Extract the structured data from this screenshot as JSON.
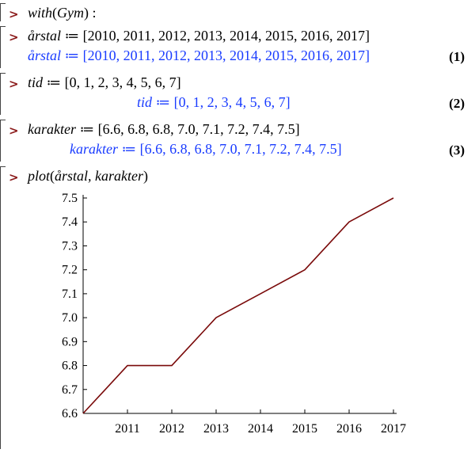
{
  "prompt_symbol": ">",
  "cells": [
    {
      "input_name": "with",
      "input_arg": "Gym",
      "input_rest": " :"
    },
    {
      "input_var": "årstal",
      "input_assign": " ≔ ",
      "input_value": "[2010, 2011, 2012, 2013, 2014, 2015, 2016, 2017]",
      "output_var": "årstal",
      "output_assign": " ≔ ",
      "output_value": "[2010, 2011, 2012, 2013, 2014, 2015, 2016, 2017]",
      "label": "(1)"
    },
    {
      "input_var": "tid",
      "input_assign": " ≔ ",
      "input_value": "[0, 1, 2, 3, 4, 5, 6, 7]",
      "output_var": "tid",
      "output_assign": " ≔ ",
      "output_value": "[0, 1, 2, 3, 4, 5, 6, 7]",
      "label": "(2)"
    },
    {
      "input_var": "karakter",
      "input_assign": " ≔ ",
      "input_value": "[6.6, 6.8, 6.8, 7.0, 7.1, 7.2, 7.4, 7.5]",
      "output_var": "karakter",
      "output_assign": " ≔ ",
      "output_value": "[6.6, 6.8, 6.8, 7.0, 7.1, 7.2, 7.4, 7.5]",
      "label": "(3)"
    },
    {
      "input_name": "plot",
      "input_arg": "årstal, karakter"
    }
  ],
  "colors": {
    "prompt": "#8b1a1a",
    "input_text": "#000000",
    "output_text": "#1a3cff",
    "plot_line": "#7a0a0a"
  },
  "chart_data": {
    "type": "line",
    "x": [
      2010,
      2011,
      2012,
      2013,
      2014,
      2015,
      2016,
      2017
    ],
    "series": [
      {
        "values": [
          6.6,
          6.8,
          6.8,
          7.0,
          7.1,
          7.2,
          7.4,
          7.5
        ]
      }
    ],
    "x_ticks": [
      "2011",
      "2012",
      "2013",
      "2014",
      "2015",
      "2016",
      "2017"
    ],
    "y_ticks": [
      "6.6",
      "6.7",
      "6.8",
      "6.9",
      "7.0",
      "7.1",
      "7.2",
      "7.3",
      "7.4",
      "7.5"
    ],
    "xlim": [
      2010,
      2017
    ],
    "ylim": [
      6.6,
      7.5
    ],
    "grid": false
  }
}
